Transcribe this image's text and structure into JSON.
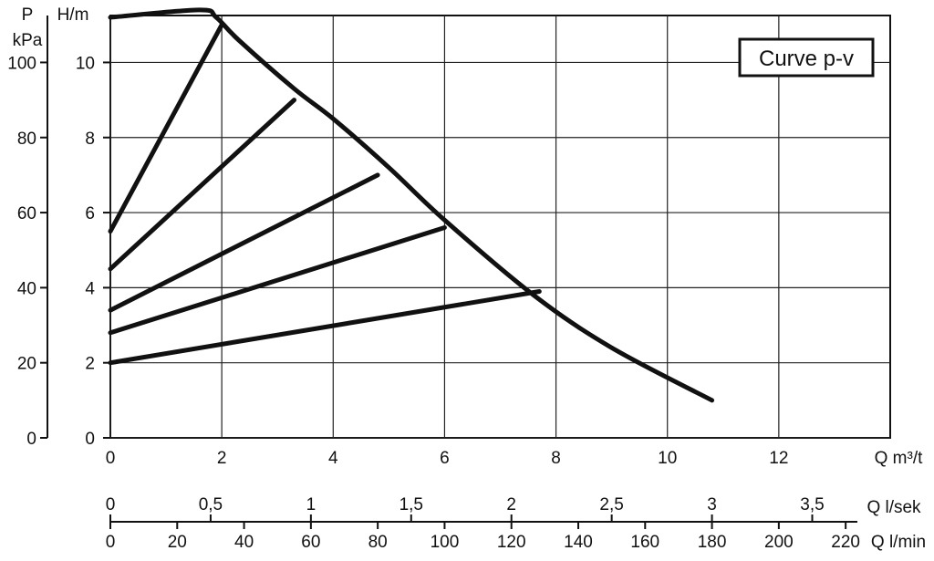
{
  "chart_data": {
    "type": "line",
    "title": "Curve  p-v",
    "left_axes": {
      "pressure": {
        "unit_top": "P",
        "unit_bottom": "kPa",
        "ticks": [
          "0",
          "20",
          "40",
          "60",
          "80",
          "100"
        ],
        "range": [
          0,
          112.5
        ]
      },
      "head": {
        "label": "H/m",
        "ticks": [
          "0",
          "2",
          "4",
          "6",
          "8",
          "10"
        ],
        "range": [
          0,
          11.25
        ]
      }
    },
    "x_axes": {
      "flow_m3h": {
        "label": "Q m³/t",
        "ticks": [
          "0",
          "2",
          "4",
          "6",
          "8",
          "10",
          "12"
        ],
        "range": [
          0,
          14
        ]
      },
      "flow_ls": {
        "label": "Q l/sek",
        "ticks": [
          "0",
          "0,5",
          "1",
          "1,5",
          "2",
          "2,5",
          "3",
          "3,5"
        ],
        "values": [
          0,
          0.5,
          1,
          1.5,
          2,
          2.5,
          3,
          3.5
        ]
      },
      "flow_lmin": {
        "label": "Q l/min",
        "ticks": [
          "0",
          "20",
          "40",
          "60",
          "80",
          "100",
          "120",
          "140",
          "160",
          "180",
          "200",
          "220"
        ],
        "values": [
          0,
          20,
          40,
          60,
          80,
          100,
          120,
          140,
          160,
          180,
          200,
          220
        ]
      }
    },
    "grid": true,
    "series": [
      {
        "x": [
          0,
          1.6,
          1.9,
          2.3,
          3.3,
          4,
          5,
          6,
          7.6,
          9,
          10.8
        ],
        "y": [
          11.2,
          11.4,
          11.2,
          10.6,
          9.3,
          8.5,
          7.2,
          5.8,
          3.8,
          2.4,
          1.0
        ]
      },
      {
        "x": [
          0,
          2
        ],
        "y": [
          5.5,
          11.0
        ]
      },
      {
        "x": [
          0,
          3.3
        ],
        "y": [
          4.5,
          9.0
        ]
      },
      {
        "x": [
          0,
          4.8
        ],
        "y": [
          3.4,
          7.0
        ]
      },
      {
        "x": [
          0,
          6
        ],
        "y": [
          2.8,
          5.6
        ]
      },
      {
        "x": [
          0,
          7.7
        ],
        "y": [
          2.0,
          3.9
        ]
      }
    ]
  }
}
